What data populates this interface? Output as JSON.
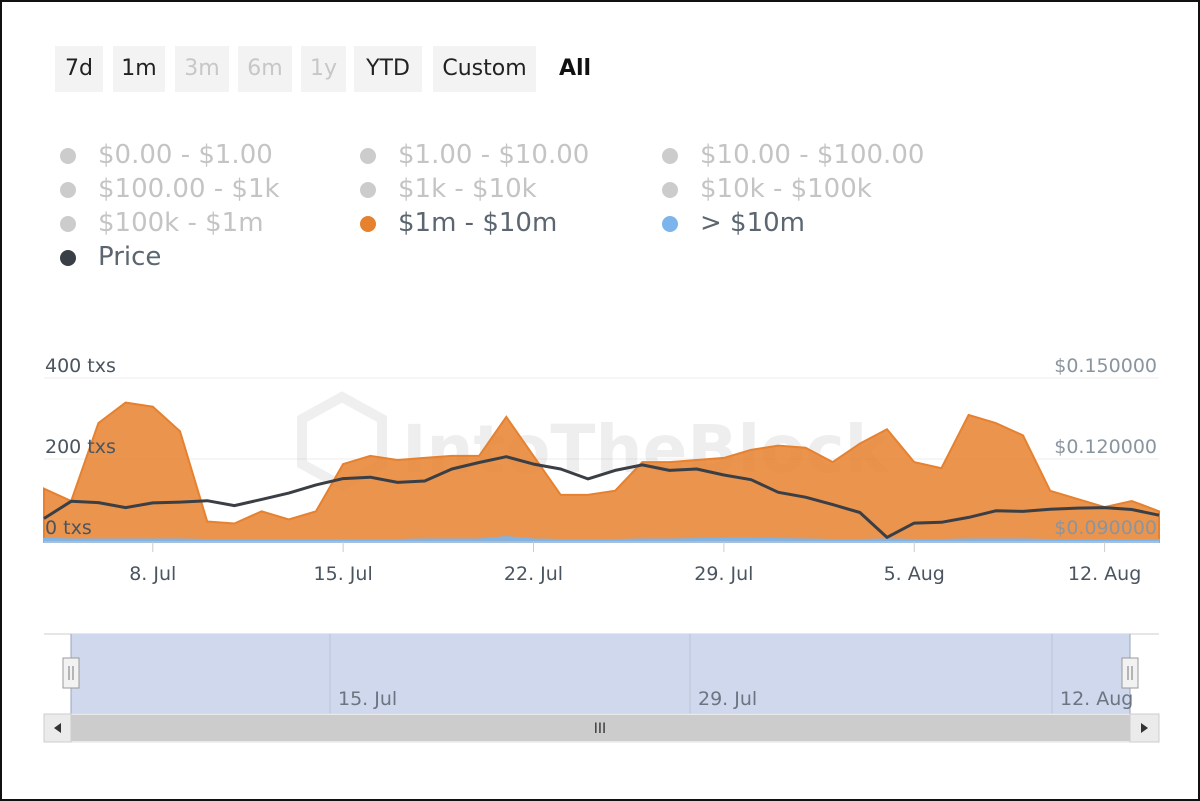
{
  "range_buttons": [
    {
      "label": "7d",
      "state": "normal"
    },
    {
      "label": "1m",
      "state": "normal"
    },
    {
      "label": "3m",
      "state": "disabled"
    },
    {
      "label": "6m",
      "state": "disabled"
    },
    {
      "label": "1y",
      "state": "disabled"
    },
    {
      "label": "YTD",
      "state": "normal"
    },
    {
      "label": "Custom",
      "state": "normal"
    },
    {
      "label": "All",
      "state": "active"
    }
  ],
  "legend": [
    {
      "label": "$0.00 - $1.00",
      "color": "#cccccc",
      "active": false
    },
    {
      "label": "$1.00 - $10.00",
      "color": "#cccccc",
      "active": false
    },
    {
      "label": "$10.00 - $100.00",
      "color": "#cccccc",
      "active": false
    },
    {
      "label": "$100.00 - $1k",
      "color": "#cccccc",
      "active": false
    },
    {
      "label": "$1k - $10k",
      "color": "#cccccc",
      "active": false
    },
    {
      "label": "$10k - $100k",
      "color": "#cccccc",
      "active": false
    },
    {
      "label": "$100k - $1m",
      "color": "#cccccc",
      "active": false
    },
    {
      "label": "$1m - $10m",
      "color": "#e6812f",
      "active": true
    },
    {
      "label": "> $10m",
      "color": "#7cb5ec",
      "active": true
    },
    {
      "label": "Price",
      "color": "#3a3f45",
      "active": true
    }
  ],
  "watermark": "IntoTheBlock",
  "chart_data": {
    "type": "area",
    "x_start": "4. Jul",
    "x_end": "14. Aug",
    "x": [
      "4. Jul",
      "5. Jul",
      "6. Jul",
      "7. Jul",
      "8. Jul",
      "9. Jul",
      "10. Jul",
      "11. Jul",
      "12. Jul",
      "13. Jul",
      "14. Jul",
      "15. Jul",
      "16. Jul",
      "17. Jul",
      "18. Jul",
      "19. Jul",
      "20. Jul",
      "21. Jul",
      "22. Jul",
      "23. Jul",
      "24. Jul",
      "25. Jul",
      "26. Jul",
      "27. Jul",
      "28. Jul",
      "29. Jul",
      "30. Jul",
      "31. Jul",
      "1. Aug",
      "2. Aug",
      "3. Aug",
      "4. Aug",
      "5. Aug",
      "6. Aug",
      "7. Aug",
      "8. Aug",
      "9. Aug",
      "10. Aug",
      "11. Aug",
      "12. Aug",
      "13. Aug",
      "14. Aug"
    ],
    "series": [
      {
        "name": "$1m - $10m",
        "axis": "left",
        "color": "#e6812f",
        "values": [
          130,
          100,
          290,
          340,
          330,
          270,
          50,
          45,
          75,
          55,
          75,
          190,
          210,
          200,
          205,
          210,
          210,
          305,
          210,
          115,
          115,
          125,
          195,
          195,
          200,
          205,
          225,
          235,
          230,
          195,
          240,
          275,
          195,
          180,
          310,
          290,
          260,
          125,
          105,
          85,
          100,
          75
        ]
      },
      {
        "name": "> $10m",
        "axis": "left",
        "color": "#7cb5ec",
        "values": [
          8,
          6,
          6,
          6,
          6,
          6,
          5,
          5,
          5,
          5,
          5,
          5,
          5,
          5,
          6,
          6,
          6,
          12,
          6,
          5,
          5,
          5,
          6,
          6,
          7,
          8,
          8,
          7,
          6,
          5,
          5,
          6,
          5,
          5,
          6,
          6,
          6,
          5,
          5,
          5,
          5,
          5
        ]
      },
      {
        "name": "Price",
        "axis": "right",
        "color": "#3a3f45",
        "values": [
          0.0986,
          0.1049,
          0.1044,
          0.1026,
          0.1043,
          0.1046,
          0.1051,
          0.1033,
          0.1056,
          0.1079,
          0.1109,
          0.1132,
          0.1137,
          0.1118,
          0.1123,
          0.1167,
          0.1191,
          0.1212,
          0.1185,
          0.1167,
          0.1131,
          0.1162,
          0.1182,
          0.1162,
          0.1167,
          0.1145,
          0.1128,
          0.1082,
          0.1064,
          0.1037,
          0.1008,
          0.0917,
          0.0969,
          0.0972,
          0.099,
          0.1014,
          0.1012,
          0.102,
          0.1024,
          0.1026,
          0.1019,
          0.0998
        ]
      }
    ],
    "y_left": {
      "ticks": [
        0,
        200,
        400
      ],
      "labels": [
        "0 txs",
        "200 txs",
        "400 txs"
      ],
      "ylim": [
        0,
        400
      ]
    },
    "y_right": {
      "ticks": [
        0.09,
        0.12,
        0.15
      ],
      "labels": [
        "$0.090000",
        "$0.120000",
        "$0.150000"
      ],
      "ylim": [
        0.09,
        0.15
      ]
    },
    "x_ticks": [
      "8. Jul",
      "15. Jul",
      "22. Jul",
      "29. Jul",
      "5. Aug",
      "12. Aug"
    ],
    "navigator_ticks": [
      "15. Jul",
      "29. Jul",
      "12. Aug"
    ],
    "navigator_scrollbar_label": "III",
    "grid": true
  }
}
